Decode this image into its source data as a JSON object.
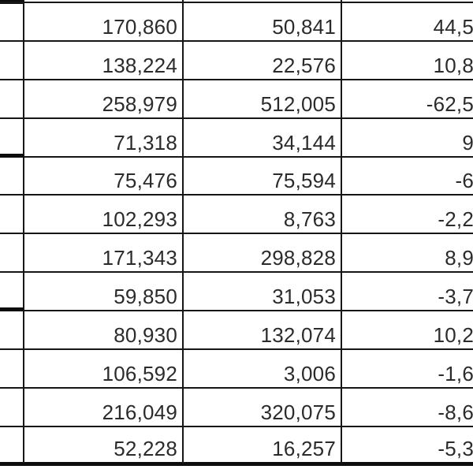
{
  "app": {
    "description": "cropped spreadsheet grid of numeric cells, no headers visible"
  },
  "colors": {
    "grid_line": "#161616",
    "thick_line": "#0d0d0d",
    "cell_text": "#2b2b2b",
    "background": "#ffffff"
  },
  "table": {
    "columns": [
      {
        "key": "a",
        "visible_content": ""
      },
      {
        "key": "b",
        "visible_content": "numbers with thousands separators"
      },
      {
        "key": "c",
        "visible_content": "numbers with thousands separators"
      },
      {
        "key": "d",
        "visible_content": "decimal-comma values, right edge cut off by crop"
      }
    ],
    "rows": [
      {
        "a": "",
        "b": "170,860",
        "c": "50,841",
        "d": "44,5"
      },
      {
        "a": "",
        "b": "138,224",
        "c": "22,576",
        "d": "10,8"
      },
      {
        "a": "",
        "b": "258,979",
        "c": "512,005",
        "d": "-62,5"
      },
      {
        "a": "",
        "b": "71,318",
        "c": "34,144",
        "d": "9"
      },
      {
        "a": "",
        "b": "75,476",
        "c": "75,594",
        "d": "-6"
      },
      {
        "a": "",
        "b": "102,293",
        "c": "8,763",
        "d": "-2,2"
      },
      {
        "a": "",
        "b": "171,343",
        "c": "298,828",
        "d": "8,9"
      },
      {
        "a": "",
        "b": "59,850",
        "c": "31,053",
        "d": "-3,7"
      },
      {
        "a": "",
        "b": "80,930",
        "c": "132,074",
        "d": "10,2"
      },
      {
        "a": "",
        "b": "106,592",
        "c": "3,006",
        "d": "-1,6"
      },
      {
        "a": "",
        "b": "216,049",
        "c": "320,075",
        "d": "-8,6"
      },
      {
        "a": "",
        "b": "52,228",
        "c": "16,257",
        "d": "-5,3"
      }
    ]
  }
}
